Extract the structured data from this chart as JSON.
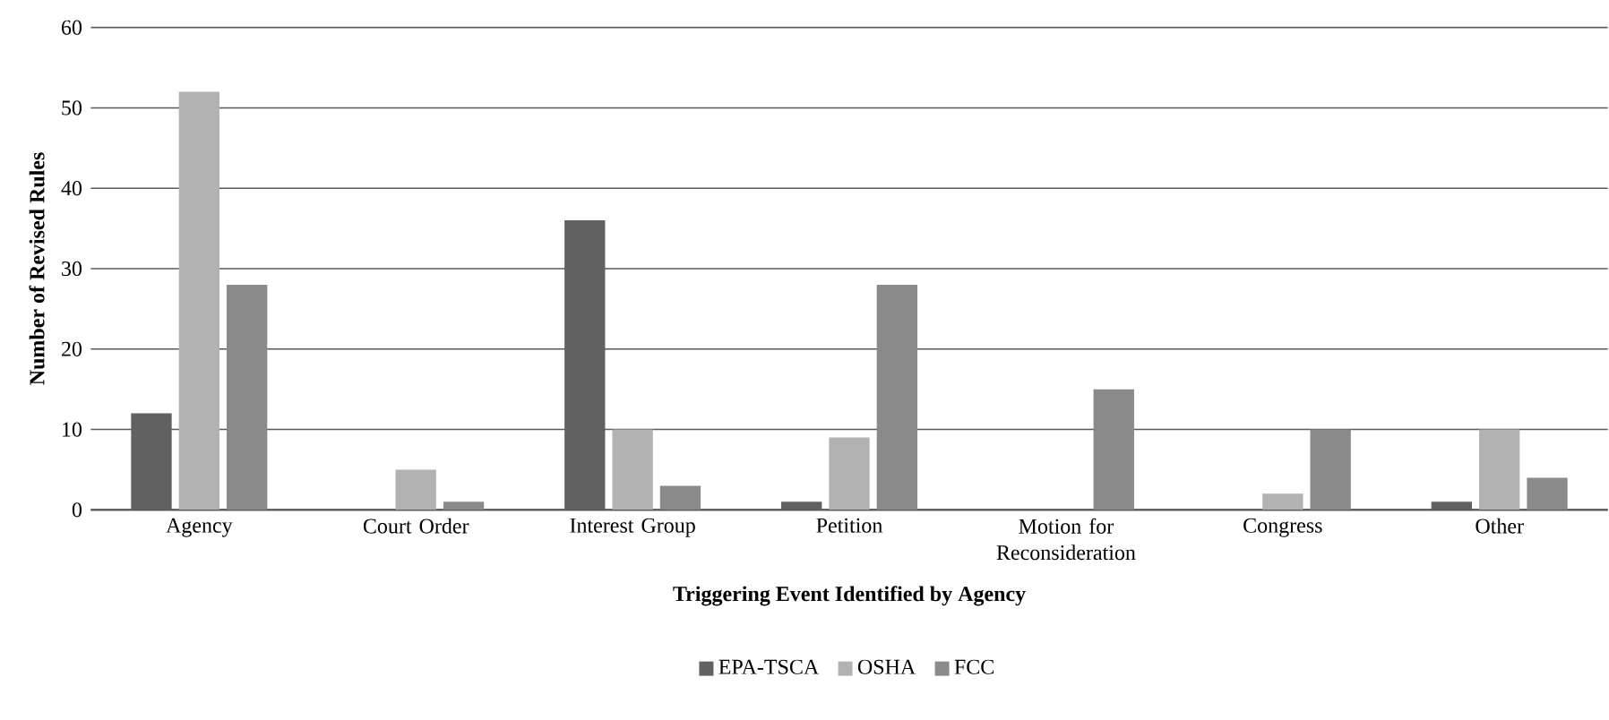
{
  "chart_data": {
    "type": "bar",
    "xlabel": "Triggering Event Identified by Agency",
    "ylabel": "Number of Revised Rules",
    "categories": [
      "Agency",
      "Court Order",
      "Interest Group",
      "Petition",
      "Motion for Reconsideration",
      "Congress",
      "Other"
    ],
    "series": [
      {
        "name": "EPA-TSCA",
        "color": "#616161",
        "values": [
          12,
          0,
          36,
          1,
          0,
          0,
          1
        ]
      },
      {
        "name": "OSHA",
        "color": "#b2b2b2",
        "values": [
          52,
          5,
          10,
          9,
          0,
          2,
          10
        ]
      },
      {
        "name": "FCC",
        "color": "#8a8a8a",
        "values": [
          28,
          1,
          3,
          28,
          15,
          10,
          4
        ]
      }
    ],
    "ylim": [
      0,
      60
    ],
    "yticks": [
      0,
      10,
      20,
      30,
      40,
      50,
      60
    ],
    "grid": "y",
    "legend": "bottom"
  }
}
